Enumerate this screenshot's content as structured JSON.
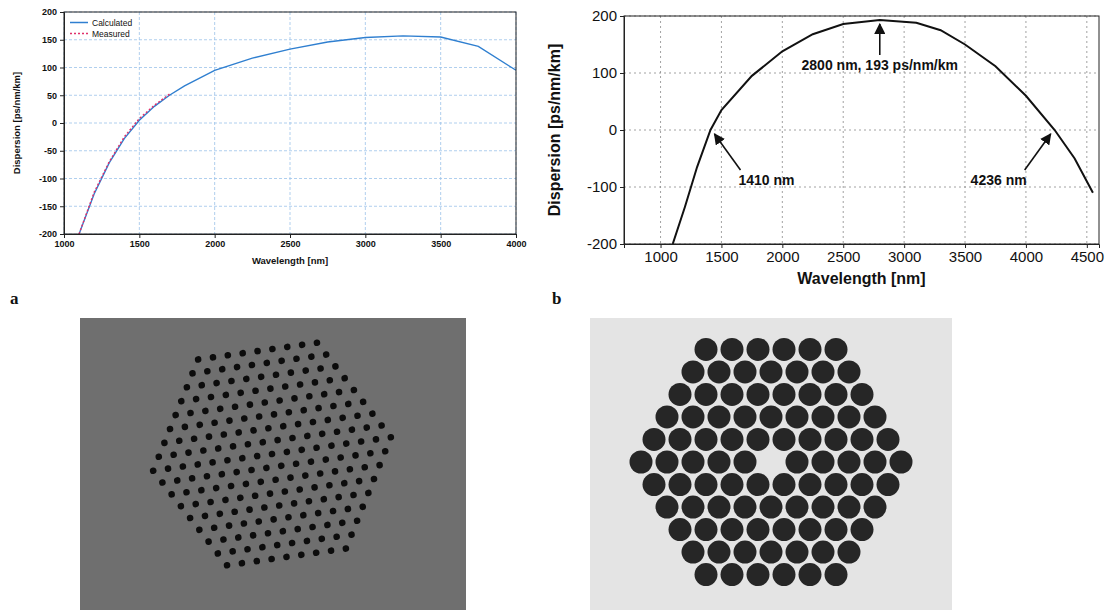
{
  "panel_labels": [
    "a",
    "b"
  ],
  "chart_data": [
    {
      "type": "line",
      "x_label": "Wavelength [nm]",
      "y_label": "Dispersion [ps/nm/km]",
      "xlim": [
        1000,
        4000
      ],
      "xticks": [
        1000,
        1500,
        2000,
        2500,
        3000,
        3500,
        4000
      ],
      "ylim": [
        -200,
        200
      ],
      "yticks": [
        -200,
        -150,
        -100,
        -50,
        0,
        50,
        100,
        150,
        200
      ],
      "grid": true,
      "legend": "upper left",
      "series": [
        {
          "name": "Calculated",
          "color": "#2f7fd0",
          "line_style": "solid",
          "x": [
            1100,
            1200,
            1300,
            1400,
            1500,
            1600,
            1700,
            1800,
            2000,
            2250,
            2500,
            2750,
            3000,
            3250,
            3500,
            3750,
            4000
          ],
          "values": [
            -200,
            -128,
            -72,
            -28,
            5,
            30,
            50,
            67,
            95,
            117,
            133,
            146,
            154,
            157,
            155,
            138,
            95
          ]
        },
        {
          "name": "Measured",
          "color": "#e0306a",
          "line_style": "dotted",
          "x": [
            1100,
            1200,
            1300,
            1400,
            1500,
            1600,
            1700
          ],
          "values": [
            -200,
            -125,
            -70,
            -25,
            8,
            32,
            52
          ]
        }
      ]
    },
    {
      "type": "line",
      "x_label": "Wavelength [nm]",
      "y_label": "Dispersion [ps/nm/km]",
      "xlim": [
        700,
        4600
      ],
      "xticks": [
        1000,
        1500,
        2000,
        2500,
        3000,
        3500,
        4000,
        4500
      ],
      "ylim": [
        -200,
        200
      ],
      "yticks": [
        -200,
        -100,
        0,
        100,
        200
      ],
      "grid": true,
      "series": [
        {
          "color": "#111111",
          "line_style": "solid",
          "x": [
            1100,
            1200,
            1300,
            1410,
            1500,
            1750,
            2000,
            2250,
            2500,
            2800,
            3100,
            3300,
            3500,
            3750,
            4000,
            4236,
            4400,
            4550
          ],
          "values": [
            -200,
            -135,
            -65,
            0,
            35,
            95,
            138,
            168,
            186,
            193,
            188,
            175,
            150,
            112,
            60,
            0,
            -50,
            -110
          ]
        }
      ],
      "annotations": [
        {
          "text": "2800 nm, 193 ps/nm/km",
          "x": 2800,
          "y": 193
        },
        {
          "text": "1410 nm",
          "x": 1410,
          "y": 0
        },
        {
          "text": "4236 nm",
          "x": 4236,
          "y": 0
        }
      ]
    }
  ]
}
